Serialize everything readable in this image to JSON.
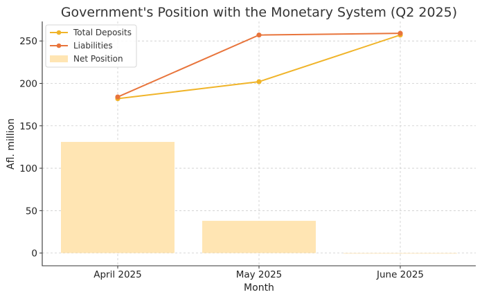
{
  "chart_data": {
    "type": "bar+line",
    "title": "Government's Position with the Monetary System (Q2 2025)",
    "xlabel": "Month",
    "ylabel": "Afl. million",
    "categories": [
      "April 2025",
      "May 2025",
      "June 2025"
    ],
    "ylim": [
      -15,
      273
    ],
    "yticks": [
      0,
      50,
      100,
      150,
      200,
      250
    ],
    "grid": true,
    "legend_position": "top-left",
    "series": [
      {
        "name": "Total Deposits",
        "kind": "line",
        "color": "#f0b429",
        "values": [
          182,
          202,
          257
        ]
      },
      {
        "name": "Liabilities",
        "kind": "line",
        "color": "#e8743b",
        "values": [
          184,
          257,
          259
        ]
      },
      {
        "name": "Net Position",
        "kind": "bar",
        "color": "#ffe5b3",
        "values": [
          131,
          38,
          0
        ]
      }
    ]
  }
}
